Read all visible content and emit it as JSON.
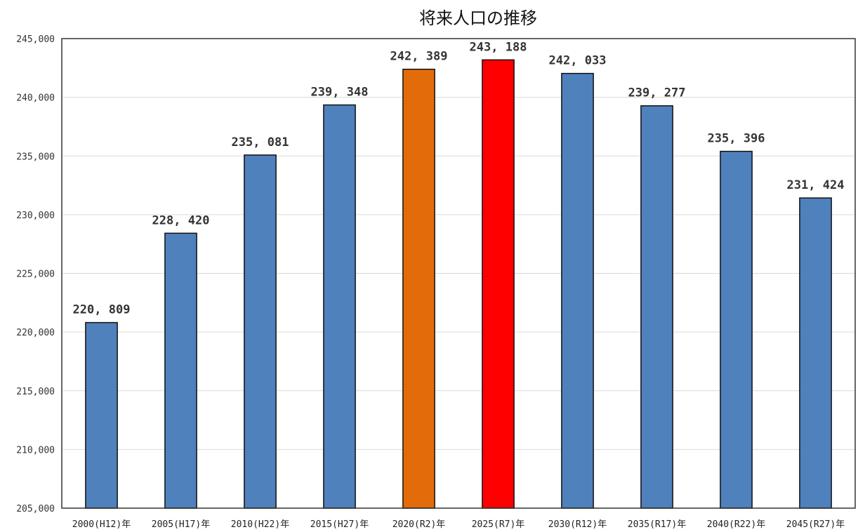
{
  "chart_data": {
    "type": "bar",
    "title": "将来人口の推移",
    "categories": [
      "2000(H12)年",
      "2005(H17)年",
      "2010(H22)年",
      "2015(H27)年",
      "2020(R2)年",
      "2025(R7)年",
      "2030(R12)年",
      "2035(R17)年",
      "2040(R22)年",
      "2045(R27)年"
    ],
    "values": [
      220809,
      228420,
      235081,
      239348,
      242389,
      243188,
      242033,
      239277,
      235396,
      231424
    ],
    "value_labels": [
      "220, 809",
      "228, 420",
      "235, 081",
      "239, 348",
      "242, 389",
      "243, 188",
      "242, 033",
      "239, 277",
      "235, 396",
      "231, 424"
    ],
    "bar_colors": [
      "#4f81bd",
      "#4f81bd",
      "#4f81bd",
      "#4f81bd",
      "#e36c0a",
      "#ff0000",
      "#4f81bd",
      "#4f81bd",
      "#4f81bd",
      "#4f81bd"
    ],
    "ylim": [
      205000,
      245000
    ],
    "yticks": [
      205000,
      210000,
      215000,
      220000,
      225000,
      230000,
      235000,
      240000,
      245000
    ],
    "ytick_labels": [
      "205,000",
      "210,000",
      "215,000",
      "220,000",
      "225,000",
      "230,000",
      "235,000",
      "240,000",
      "245,000"
    ],
    "grid": true,
    "legend": "none"
  }
}
